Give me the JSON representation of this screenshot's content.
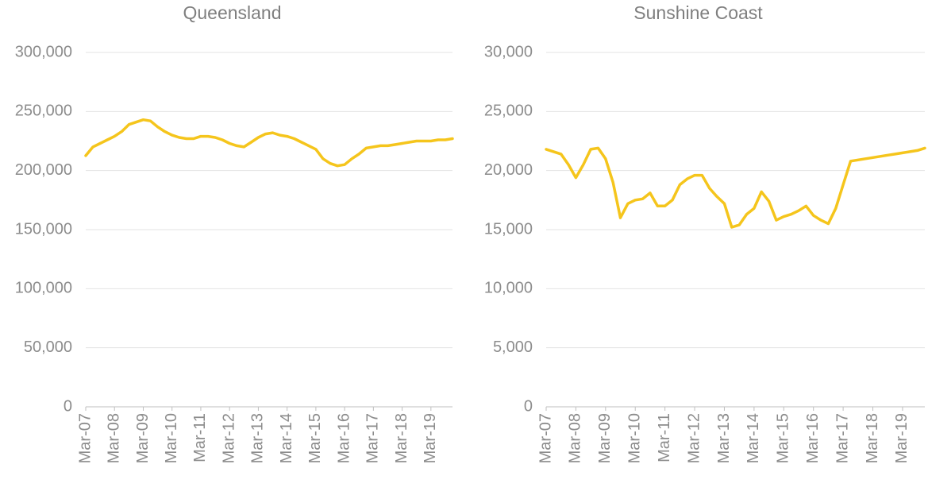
{
  "chart_data": [
    {
      "type": "line",
      "title": "Queensland",
      "categories": [
        "Mar-07",
        null,
        null,
        null,
        "Mar-08",
        null,
        null,
        null,
        "Mar-09",
        null,
        null,
        null,
        "Mar-10",
        null,
        null,
        null,
        "Mar-11",
        null,
        null,
        null,
        "Mar-12",
        null,
        null,
        null,
        "Mar-13",
        null,
        null,
        null,
        "Mar-14",
        null,
        null,
        null,
        "Mar-15",
        null,
        null,
        null,
        "Mar-16",
        null,
        null,
        null,
        "Mar-17",
        null,
        null,
        null,
        "Mar-18",
        null,
        null,
        null,
        "Mar-19",
        null,
        null,
        null
      ],
      "values": [
        212600,
        220000,
        223000,
        226000,
        229000,
        233000,
        239000,
        241000,
        243000,
        242000,
        237000,
        233000,
        230000,
        228000,
        227000,
        227000,
        229000,
        229000,
        228000,
        226000,
        223000,
        221000,
        220000,
        224000,
        228000,
        231000,
        232000,
        230000,
        229000,
        227000,
        224000,
        221000,
        218000,
        210000,
        206000,
        204000,
        205000,
        210000,
        214000,
        219000,
        220000,
        221000,
        221000,
        222000,
        223000,
        224000,
        225000,
        225000,
        225000,
        226000,
        226000,
        227000
      ],
      "color": "#f5c51c",
      "ylim": [
        0,
        300000
      ],
      "yticks": [
        0,
        {
          "value": 50000,
          "label": "50,000"
        },
        {
          "value": 100000,
          "label": "100,000"
        },
        {
          "value": 150000,
          "label": "150,000"
        },
        {
          "value": 200000,
          "label": "200,000"
        },
        {
          "value": 250000,
          "label": "250,000"
        },
        {
          "value": 300000,
          "label": "300,000"
        }
      ],
      "grid": true
    },
    {
      "type": "line",
      "title": "Sunshine Coast",
      "categories": [
        "Mar-07",
        null,
        null,
        null,
        "Mar-08",
        null,
        null,
        null,
        "Mar-09",
        null,
        null,
        null,
        "Mar-10",
        null,
        null,
        null,
        "Mar-11",
        null,
        null,
        null,
        "Mar-12",
        null,
        null,
        null,
        "Mar-13",
        null,
        null,
        null,
        "Mar-14",
        null,
        null,
        null,
        "Mar-15",
        null,
        null,
        null,
        "Mar-16",
        null,
        null,
        null,
        "Mar-17",
        null,
        null,
        null,
        "Mar-18",
        null,
        null,
        null,
        "Mar-19",
        null,
        null,
        null
      ],
      "values": [
        21800,
        21600,
        21400,
        20500,
        19400,
        20500,
        21800,
        21900,
        21000,
        19000,
        16000,
        17200,
        17500,
        17600,
        18100,
        17000,
        17000,
        17500,
        18800,
        19300,
        19600,
        19600,
        18500,
        17800,
        17200,
        15200,
        15400,
        16300,
        16800,
        18200,
        17400,
        15800,
        16100,
        16300,
        16600,
        17000,
        16200,
        15800,
        15500,
        16800,
        18800,
        20800,
        20900,
        21000,
        21100,
        21200,
        21300,
        21400,
        21500,
        21600,
        21700,
        21900
      ],
      "color": "#f5c51c",
      "ylim": [
        0,
        30000
      ],
      "yticks": [
        0,
        {
          "value": 5000,
          "label": "5,000"
        },
        {
          "value": 10000,
          "label": "10,000"
        },
        {
          "value": 15000,
          "label": "15,000"
        },
        {
          "value": 20000,
          "label": "20,000"
        },
        {
          "value": 25000,
          "label": "25,000"
        },
        {
          "value": 30000,
          "label": "30,000"
        }
      ],
      "grid": true
    }
  ]
}
